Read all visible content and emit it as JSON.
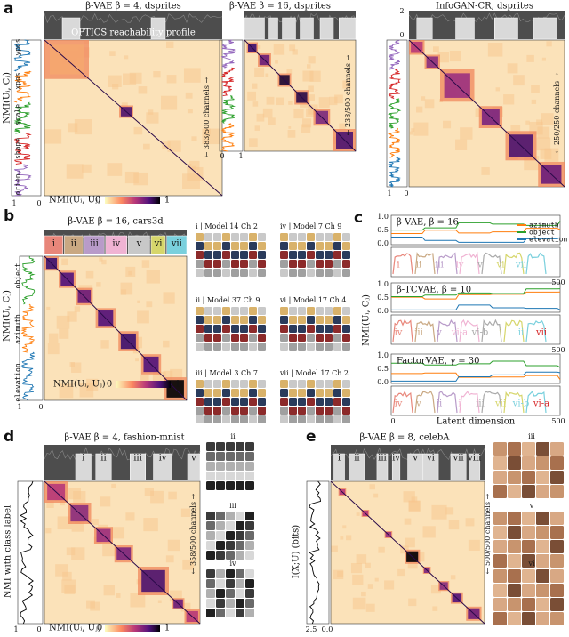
{
  "a": {
    "label": "a",
    "plots": [
      {
        "title": "β-VAE β = 4, dsprites",
        "profile_label": "OPTICS reachability profile",
        "channels": "← 383/500 channels →",
        "y_label": "NMI(Uᵢ, Cⱼ)",
        "factors": [
          "orien.",
          "shape",
          "scale",
          "xpos",
          "ypos"
        ],
        "profile_ticks": [
          "1",
          "0"
        ],
        "colorbar": {
          "label": "NMI(Uᵢ, Uⱼ)",
          "min": "0",
          "max": "1"
        }
      },
      {
        "title": "β-VAE β = 16, dsprites",
        "channels": "← 238/500 channels →",
        "profile_ticks": [
          "0",
          "1"
        ]
      },
      {
        "title": "InfoGAN-CR, dsprites",
        "channels": "← 250/250 channels →",
        "reachability_ticks": [
          "2",
          "0"
        ],
        "profile_ticks": [
          "1",
          "0"
        ]
      }
    ]
  },
  "b": {
    "label": "b",
    "title": "β-VAE β = 16, cars3d",
    "clusters": [
      "i",
      "ii",
      "iii",
      "iv",
      "v",
      "vi",
      "vii"
    ],
    "factors": [
      "elevation",
      "azimuth",
      "object"
    ],
    "y_label": "NMI(Uᵢ, Cⱼ)",
    "profile_ticks": [
      "1",
      "0"
    ],
    "colorbar": {
      "label": "NMI(Uᵢ, Uⱼ)",
      "min": "0",
      "max": "1"
    },
    "examples": [
      "i | Model 14 Ch 2",
      "iv | Model 7 Ch 9",
      "ii | Model 37 Ch 9",
      "vi | Model 17 Ch 4",
      "iii | Model 3 Ch 7",
      "vii | Model 17 Ch 2"
    ]
  },
  "c": {
    "label": "c",
    "models": [
      {
        "title": "β-VAE, β = 16",
        "clusters": [
          "i",
          "ii",
          "iii",
          "iv",
          "v",
          "vi",
          "vii"
        ]
      },
      {
        "title": "β-TCVAE, β = 10",
        "clusters": [
          "iv",
          "iii",
          "v",
          "vi-a",
          "vi-b",
          "i",
          "ii",
          "vii"
        ]
      },
      {
        "title": "FactorVAE, γ = 30",
        "clusters": [
          "iv",
          "v",
          "ii",
          "i",
          "iii",
          "vii",
          "vi-b",
          "vi-a"
        ]
      }
    ],
    "legend": [
      "azimuth",
      "object",
      "elevation"
    ],
    "yticks": [
      "1.0",
      "0.5",
      "0.0"
    ],
    "xticks": [
      "0",
      "500"
    ],
    "x_label": "Latent dimension",
    "y_label": "NMI(Uᵢ, Cⱼ)"
  },
  "d": {
    "label": "d",
    "title": "β-VAE β = 4, fashion-mnist",
    "clusters": [
      "i",
      "ii",
      "iii",
      "iv",
      "v"
    ],
    "channels": "← 358/500 channels →",
    "y_label": "NMI with class label",
    "profile_ticks": [
      "1",
      "0"
    ],
    "colorbar": {
      "label": "NMI(Uᵢ, Uⱼ)",
      "min": "0",
      "max": "1"
    },
    "examples": [
      "ii",
      "iii",
      "iv"
    ]
  },
  "e": {
    "label": "e",
    "title": "β-VAE β = 8, celebA",
    "clusters": [
      "i",
      "ii",
      "iii",
      "iv",
      "v",
      "vi",
      "vii",
      "viii"
    ],
    "channels": "← 500/500 channels →",
    "y_label": "I(X;U) (bits)",
    "profile_ticks": [
      "2.5",
      "0.0"
    ],
    "examples": [
      "iii",
      "v",
      "vi"
    ]
  }
}
